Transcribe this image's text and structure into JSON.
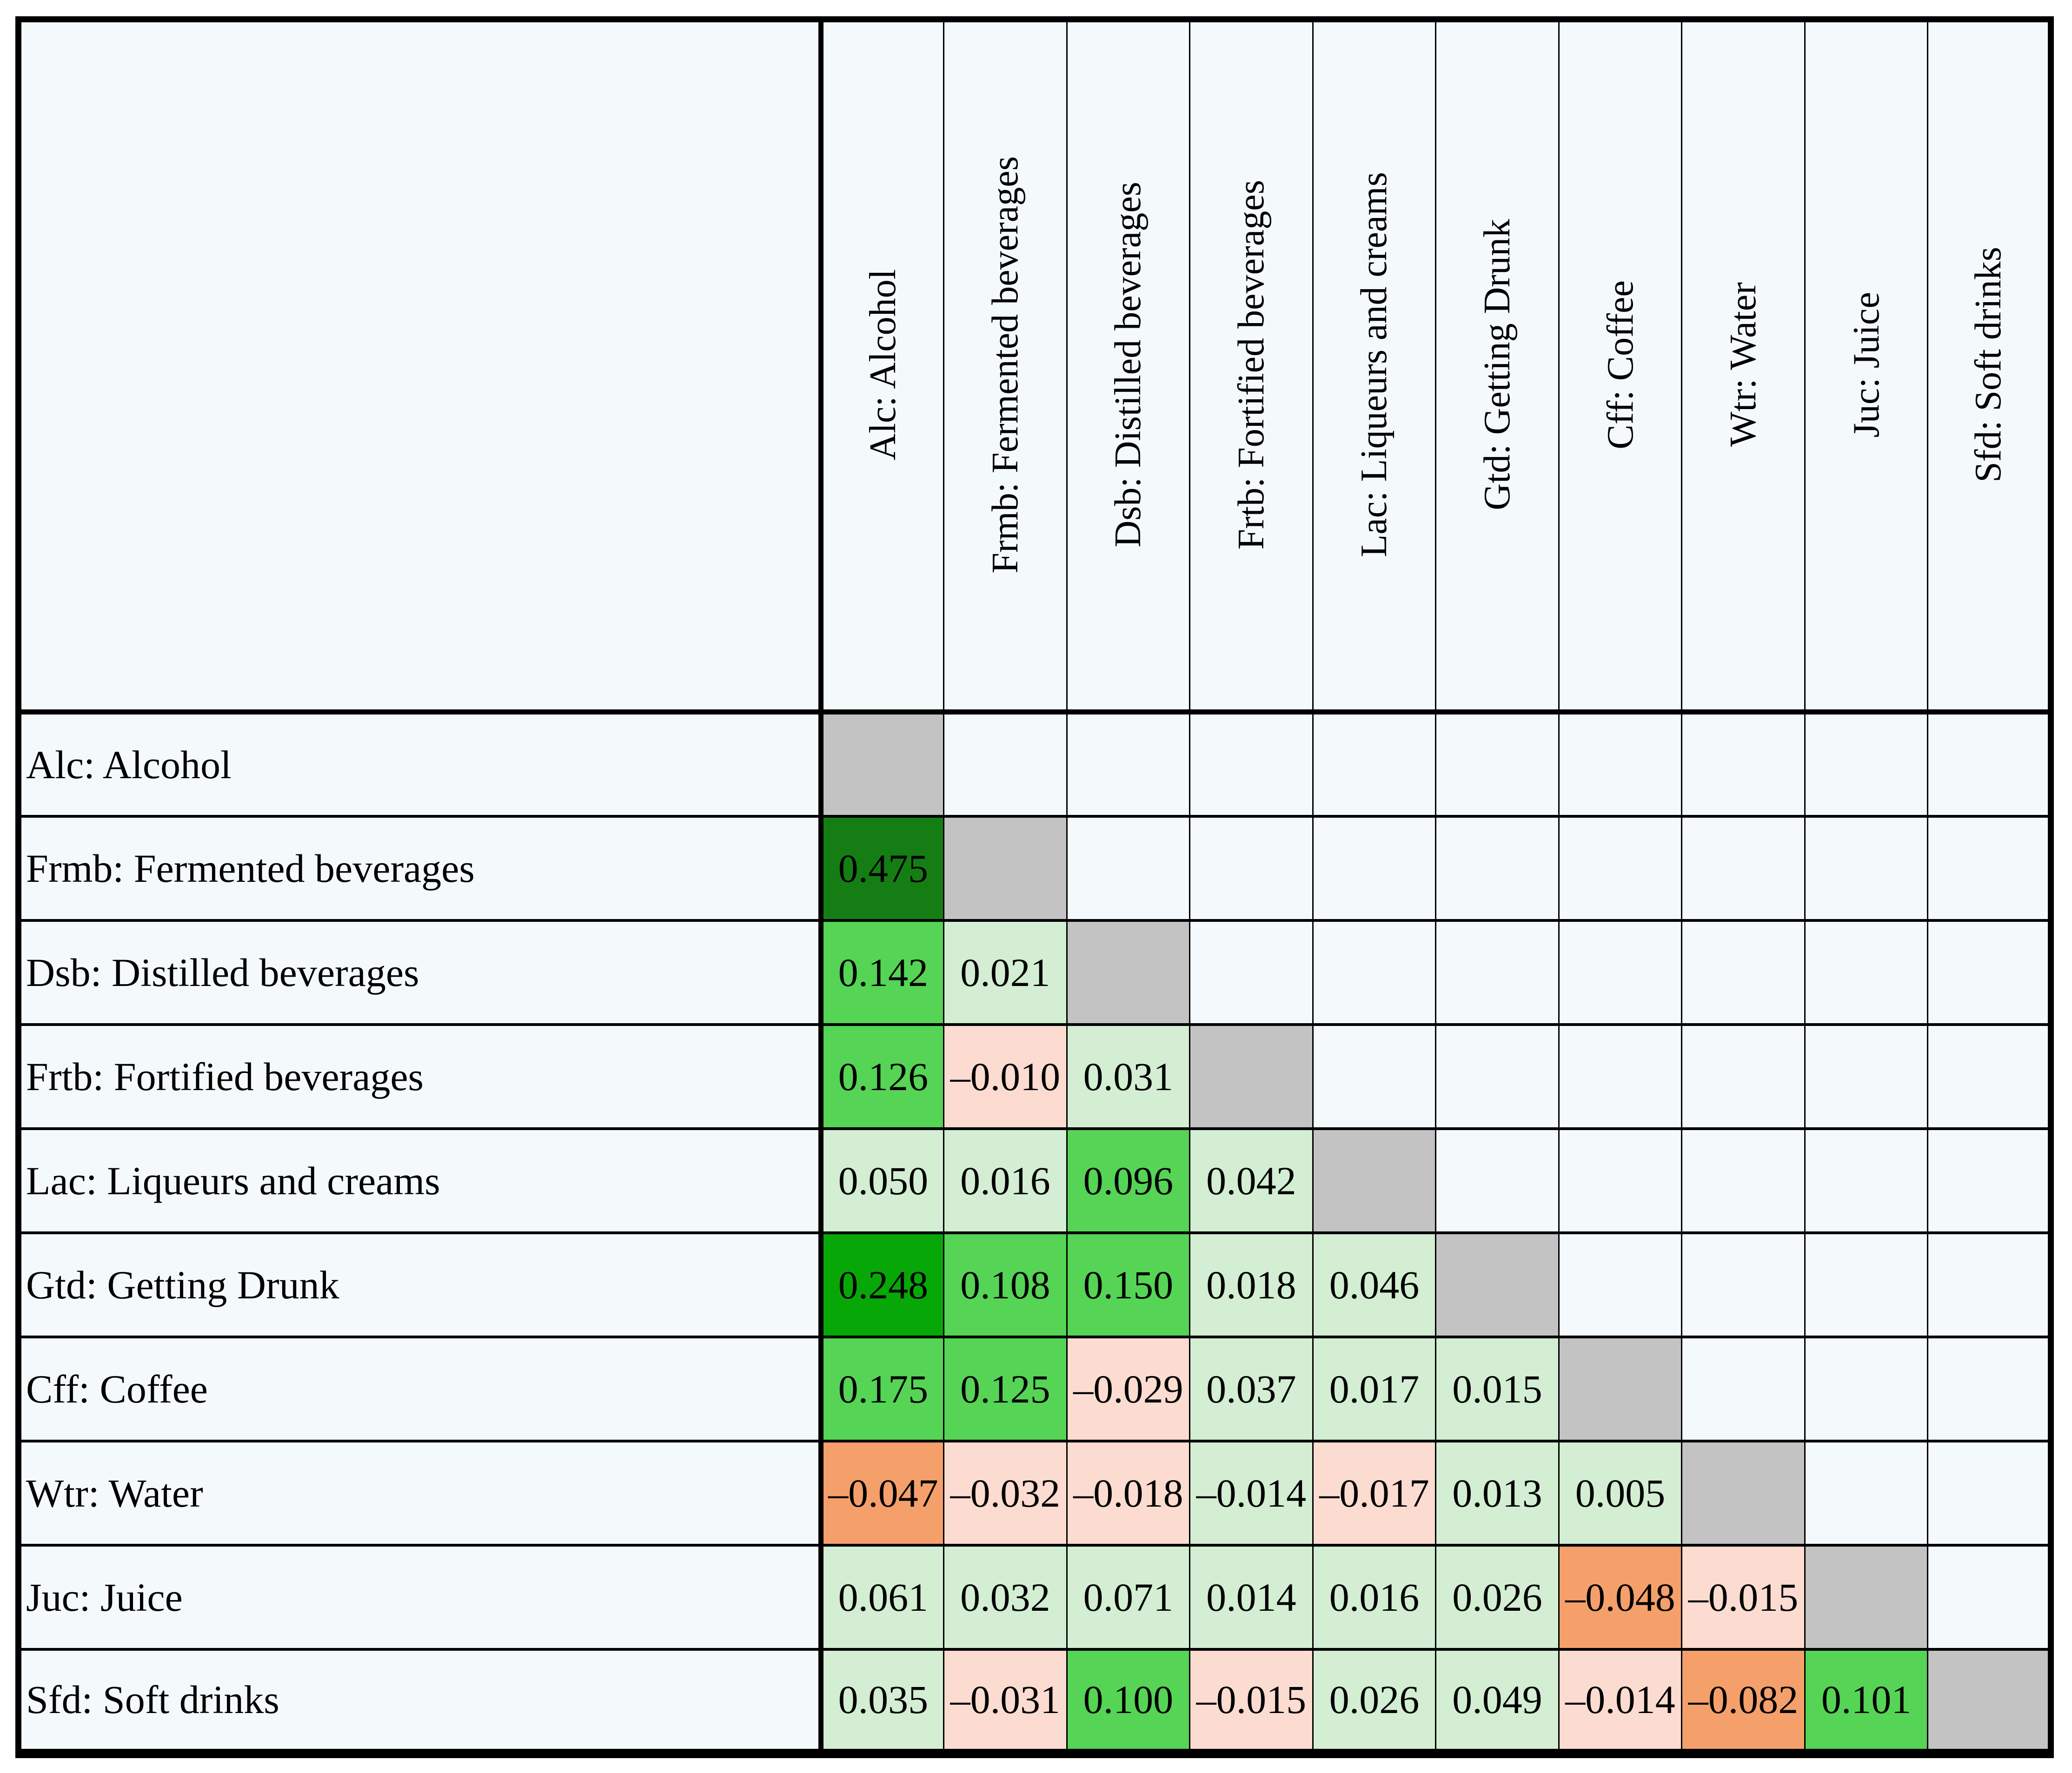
{
  "figure": {
    "description": "Lower-triangular correlation matrix heatmap of beverage categories"
  },
  "matrix": {
    "labels": [
      "Alc: Alcohol",
      "Frmb: Fermented beverages",
      "Dsb: Distilled beverages",
      "Frtb: Fortified beverages",
      "Lac: Liqueurs and creams",
      "Gtd: Getting Drunk",
      "Cff: Coffee",
      "Wtr: Water",
      "Juc: Juice",
      "Sfd: Soft drinks"
    ],
    "rows": [
      {
        "label": "Alc: Alcohol",
        "values": [],
        "colors": []
      },
      {
        "label": "Frmb: Fermented beverages",
        "values": [
          "0.475"
        ],
        "colors": [
          "DG"
        ]
      },
      {
        "label": "Dsb: Distilled beverages",
        "values": [
          "0.142",
          "0.021"
        ],
        "colors": [
          "MG",
          "LG"
        ]
      },
      {
        "label": "Frtb: Fortified beverages",
        "values": [
          "0.126",
          "–0.010",
          "0.031"
        ],
        "colors": [
          "MG",
          "PK",
          "LG"
        ]
      },
      {
        "label": "Lac: Liqueurs and creams",
        "values": [
          "0.050",
          "0.016",
          "0.096",
          "0.042"
        ],
        "colors": [
          "LG",
          "LG",
          "MG",
          "LG"
        ]
      },
      {
        "label": "Gtd: Getting Drunk",
        "values": [
          "0.248",
          "0.108",
          "0.150",
          "0.018",
          "0.046"
        ],
        "colors": [
          "VG",
          "MG",
          "MG",
          "LG",
          "LG"
        ]
      },
      {
        "label": "Cff: Coffee",
        "values": [
          "0.175",
          "0.125",
          "–0.029",
          "0.037",
          "0.017",
          "0.015"
        ],
        "colors": [
          "MG",
          "MG",
          "PK",
          "LG",
          "LG",
          "LG"
        ]
      },
      {
        "label": "Wtr: Water",
        "values": [
          "–0.047",
          "–0.032",
          "–0.018",
          "–0.014",
          "–0.017",
          "0.013",
          "0.005"
        ],
        "colors": [
          "OR",
          "PK",
          "PK",
          "LG",
          "PK",
          "LG",
          "LG"
        ]
      },
      {
        "label": "Juc: Juice",
        "values": [
          "0.061",
          "0.032",
          "0.071",
          "0.014",
          "0.016",
          "0.026",
          "–0.048",
          "–0.015"
        ],
        "colors": [
          "LG",
          "LG",
          "LG",
          "LG",
          "LG",
          "LG",
          "OR",
          "PK"
        ]
      },
      {
        "label": "Sfd: Soft drinks",
        "values": [
          "0.035",
          "–0.031",
          "0.100",
          "–0.015",
          "0.026",
          "0.049",
          "–0.014",
          "–0.082",
          "0.101"
        ],
        "colors": [
          "LG",
          "PK",
          "MG",
          "PK",
          "LG",
          "LG",
          "PK",
          "OR",
          "MG"
        ]
      }
    ]
  },
  "palette": {
    "DG": "#147e14",
    "VG": "#08a708",
    "MG": "#55d455",
    "LG": "#d3eed3",
    "PK": "#fcdcd1",
    "OR": "#f5a06b",
    "diagonal": "#c3c3c3",
    "cell_background": "#f4fafb",
    "border": "#000000"
  },
  "chart_data": {
    "type": "heatmap",
    "categories": [
      "Alc: Alcohol",
      "Frmb: Fermented beverages",
      "Dsb: Distilled beverages",
      "Frtb: Fortified beverages",
      "Lac: Liqueurs and creams",
      "Gtd: Getting Drunk",
      "Cff: Coffee",
      "Wtr: Water",
      "Juc: Juice",
      "Sfd: Soft drinks"
    ],
    "lower_triangle_values": [
      [],
      [
        0.475
      ],
      [
        0.142,
        0.021
      ],
      [
        0.126,
        -0.01,
        0.031
      ],
      [
        0.05,
        0.016,
        0.096,
        0.042
      ],
      [
        0.248,
        0.108,
        0.15,
        0.018,
        0.046
      ],
      [
        0.175,
        0.125,
        -0.029,
        0.037,
        0.017,
        0.015
      ],
      [
        -0.047,
        -0.032,
        -0.018,
        -0.014,
        -0.017,
        0.013,
        0.005
      ],
      [
        0.061,
        0.032,
        0.071,
        0.014,
        0.016,
        0.026,
        -0.048,
        -0.015
      ],
      [
        0.035,
        -0.031,
        0.1,
        -0.015,
        0.026,
        0.049,
        -0.014,
        -0.082,
        0.101
      ]
    ],
    "layout": {
      "diagonal": "gray filled cells",
      "upper_triangle": "empty cells",
      "positive_color": "green shades (darker = stronger)",
      "negative_color": "pink/orange shades (darker = stronger)",
      "grid": true,
      "legend": false
    }
  }
}
